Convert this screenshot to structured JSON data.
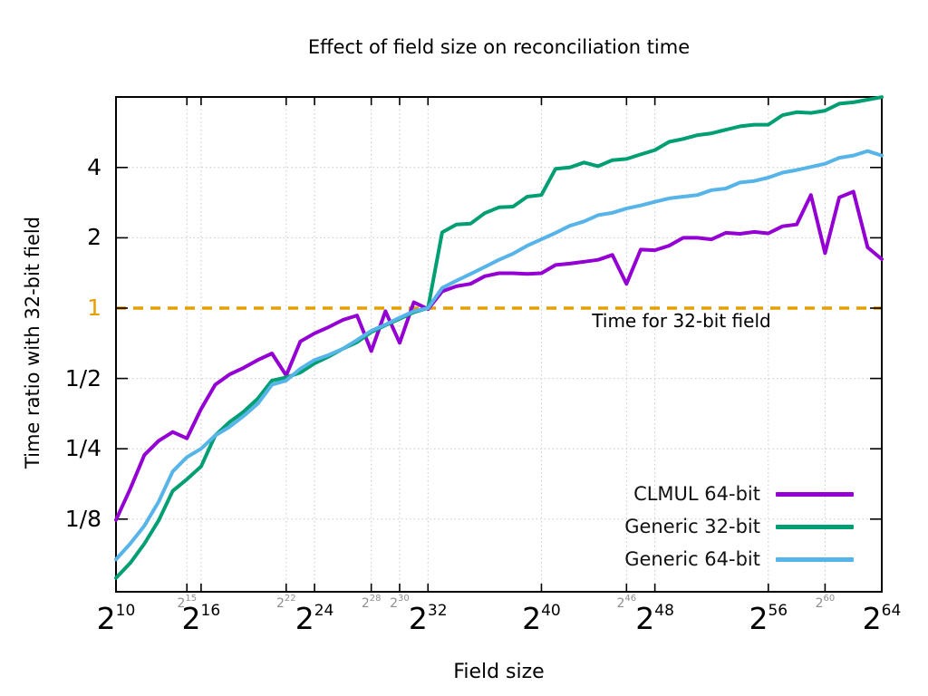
{
  "chart_data": {
    "type": "line",
    "title": "Effect of field size on reconciliation time",
    "xlabel": "Field size",
    "ylabel": "Time ratio with 32-bit field",
    "x_scale": "log2-exponent-of-field-size",
    "y_scale": "log2",
    "x_exponent_range": [
      10,
      64
    ],
    "y_range": [
      0.061,
      8.02
    ],
    "grid": true,
    "legend_position": "inside-bottom-right",
    "x_major_tick_exponents": [
      10,
      16,
      24,
      32,
      40,
      48,
      56,
      64
    ],
    "x_minor_tick_exponents": [
      15,
      22,
      28,
      30,
      46,
      60
    ],
    "y_ticks": [
      {
        "label": "4",
        "value": 4,
        "color": "#000000"
      },
      {
        "label": "2",
        "value": 2,
        "color": "#000000"
      },
      {
        "label": "1",
        "value": 1,
        "color": "#e69f00"
      },
      {
        "label": "1/2",
        "value": 0.5,
        "color": "#000000"
      },
      {
        "label": "1/4",
        "value": 0.25,
        "color": "#000000"
      },
      {
        "label": "1/8",
        "value": 0.125,
        "color": "#000000"
      }
    ],
    "reference_line": {
      "value": 1,
      "label": "Time for 32-bit field",
      "color": "#e69f00",
      "style": "dashed"
    },
    "x_exponents": [
      10,
      11,
      12,
      13,
      14,
      15,
      16,
      17,
      18,
      19,
      20,
      21,
      22,
      23,
      24,
      25,
      26,
      27,
      28,
      29,
      30,
      31,
      32,
      33,
      34,
      35,
      36,
      37,
      38,
      39,
      40,
      41,
      42,
      43,
      44,
      45,
      46,
      47,
      48,
      49,
      50,
      51,
      52,
      53,
      54,
      55,
      56,
      57,
      58,
      59,
      60,
      61,
      62,
      63,
      64
    ],
    "series": [
      {
        "name": "CLMUL 64-bit",
        "color": "#9400d3",
        "values": [
          0.124,
          0.168,
          0.235,
          0.27,
          0.295,
          0.277,
          0.37,
          0.47,
          0.52,
          0.555,
          0.6,
          0.64,
          0.515,
          0.72,
          0.78,
          0.83,
          0.89,
          0.93,
          0.655,
          0.97,
          0.71,
          1.06,
          0.99,
          1.18,
          1.24,
          1.27,
          1.37,
          1.41,
          1.41,
          1.4,
          1.41,
          1.53,
          1.55,
          1.58,
          1.61,
          1.69,
          1.27,
          1.78,
          1.77,
          1.85,
          2.0,
          2.0,
          1.97,
          2.1,
          2.08,
          2.12,
          2.09,
          2.24,
          2.28,
          3.05,
          1.72,
          2.98,
          3.15,
          1.82,
          1.62
        ]
      },
      {
        "name": "Generic 32-bit",
        "color": "#009e73",
        "values": [
          0.07,
          0.081,
          0.098,
          0.123,
          0.165,
          0.185,
          0.21,
          0.285,
          0.325,
          0.36,
          0.41,
          0.49,
          0.505,
          0.53,
          0.58,
          0.62,
          0.67,
          0.715,
          0.79,
          0.845,
          0.9,
          0.96,
          1.0,
          2.11,
          2.28,
          2.3,
          2.55,
          2.7,
          2.72,
          3.0,
          3.05,
          3.95,
          4.0,
          4.2,
          4.05,
          4.3,
          4.35,
          4.55,
          4.75,
          5.15,
          5.3,
          5.5,
          5.6,
          5.8,
          6.0,
          6.1,
          6.1,
          6.7,
          6.9,
          6.85,
          7.0,
          7.5,
          7.6,
          7.8,
          8.0
        ]
      },
      {
        "name": "Generic 64-bit",
        "color": "#56b4e9",
        "values": [
          0.084,
          0.098,
          0.117,
          0.148,
          0.2,
          0.23,
          0.25,
          0.285,
          0.31,
          0.345,
          0.39,
          0.47,
          0.49,
          0.55,
          0.6,
          0.63,
          0.67,
          0.73,
          0.8,
          0.85,
          0.91,
          0.97,
          1.0,
          1.22,
          1.31,
          1.4,
          1.5,
          1.61,
          1.71,
          1.85,
          1.97,
          2.1,
          2.25,
          2.35,
          2.5,
          2.56,
          2.67,
          2.75,
          2.85,
          2.95,
          3.0,
          3.05,
          3.2,
          3.25,
          3.45,
          3.5,
          3.62,
          3.8,
          3.9,
          4.02,
          4.15,
          4.4,
          4.5,
          4.7,
          4.5
        ]
      }
    ]
  }
}
